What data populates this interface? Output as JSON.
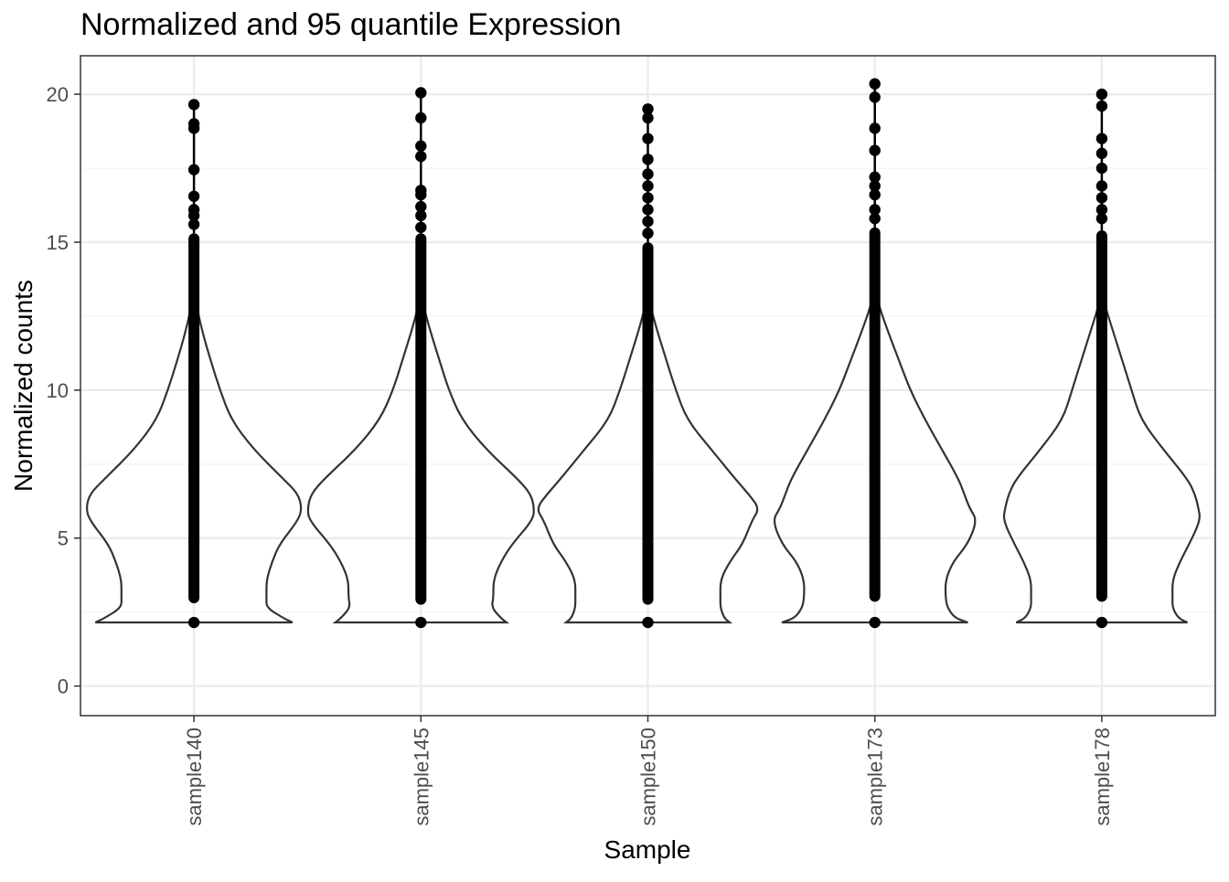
{
  "chart_data": {
    "type": "violin",
    "title": "Normalized and 95 quantile Expression",
    "xlabel": "Sample",
    "ylabel": "Normalized counts",
    "ylim": [
      -1.0,
      21.3
    ],
    "yticks": [
      0,
      5,
      10,
      15,
      20
    ],
    "yticklabels": [
      "0",
      "5",
      "10",
      "15",
      "20"
    ],
    "grid": true,
    "legend": "none",
    "categories": [
      "sample140",
      "sample145",
      "sample150",
      "sample173",
      "sample178"
    ],
    "series": [
      {
        "category": "sample140",
        "min": 2.15,
        "max": 19.65,
        "points_top": [
          19.65,
          19.0,
          18.85,
          17.45,
          16.55,
          16.1,
          15.9,
          15.6
        ],
        "points_dense_range": [
          2.8,
          15.3
        ],
        "violin_halfwidth_by_y": [
          [
            2.15,
            2.65
          ],
          [
            2.3,
            2.4
          ],
          [
            2.65,
            1.95
          ],
          [
            3.0,
            1.95
          ],
          [
            3.6,
            1.95
          ],
          [
            4.2,
            2.1
          ],
          [
            4.8,
            2.3
          ],
          [
            5.6,
            2.8
          ],
          [
            6.0,
            2.9
          ],
          [
            6.5,
            2.8
          ],
          [
            7.0,
            2.4
          ],
          [
            8.0,
            1.6
          ],
          [
            9.0,
            1.0
          ],
          [
            10.0,
            0.7
          ],
          [
            11.0,
            0.45
          ],
          [
            12.0,
            0.22
          ],
          [
            12.8,
            0.08
          ],
          [
            13.3,
            0.0
          ]
        ]
      },
      {
        "category": "sample145",
        "min": 2.15,
        "max": 20.05,
        "points_top": [
          20.05,
          19.2,
          18.25,
          17.9,
          16.75,
          16.6,
          16.2,
          15.9,
          15.5
        ],
        "points_dense_range": [
          2.75,
          15.3
        ],
        "violin_halfwidth_by_y": [
          [
            2.15,
            2.3
          ],
          [
            2.3,
            2.15
          ],
          [
            2.65,
            1.9
          ],
          [
            3.0,
            1.95
          ],
          [
            3.6,
            1.95
          ],
          [
            4.2,
            2.15
          ],
          [
            4.8,
            2.45
          ],
          [
            5.6,
            3.0
          ],
          [
            6.0,
            3.05
          ],
          [
            6.5,
            2.95
          ],
          [
            7.0,
            2.6
          ],
          [
            8.0,
            1.75
          ],
          [
            9.0,
            1.1
          ],
          [
            10.0,
            0.75
          ],
          [
            11.0,
            0.5
          ],
          [
            12.0,
            0.25
          ],
          [
            12.8,
            0.08
          ],
          [
            13.3,
            0.0
          ]
        ]
      },
      {
        "category": "sample150",
        "min": 2.15,
        "max": 19.5,
        "points_top": [
          19.5,
          19.2,
          18.5,
          17.8,
          17.3,
          16.9,
          16.5,
          16.1,
          15.7,
          15.3
        ],
        "points_dense_range": [
          2.75,
          15.0
        ],
        "violin_halfwidth_by_y": [
          [
            2.15,
            2.2
          ],
          [
            2.3,
            2.05
          ],
          [
            2.65,
            1.95
          ],
          [
            3.0,
            1.95
          ],
          [
            3.6,
            1.95
          ],
          [
            4.2,
            2.2
          ],
          [
            4.8,
            2.55
          ],
          [
            5.6,
            2.8
          ],
          [
            6.0,
            3.0
          ],
          [
            6.5,
            2.7
          ],
          [
            7.0,
            2.35
          ],
          [
            8.0,
            1.7
          ],
          [
            9.0,
            1.05
          ],
          [
            10.0,
            0.75
          ],
          [
            11.0,
            0.5
          ],
          [
            12.0,
            0.25
          ],
          [
            12.8,
            0.08
          ],
          [
            13.3,
            0.0
          ]
        ]
      },
      {
        "category": "sample173",
        "min": 2.15,
        "max": 20.35,
        "points_top": [
          20.35,
          19.9,
          18.85,
          18.1,
          17.2,
          16.9,
          16.6,
          16.1,
          15.8
        ],
        "points_dense_range": [
          2.85,
          15.5
        ],
        "violin_halfwidth_by_y": [
          [
            2.15,
            2.5
          ],
          [
            2.3,
            2.15
          ],
          [
            2.65,
            1.95
          ],
          [
            3.0,
            1.9
          ],
          [
            3.6,
            1.9
          ],
          [
            4.2,
            2.1
          ],
          [
            4.8,
            2.5
          ],
          [
            5.6,
            2.75
          ],
          [
            6.0,
            2.55
          ],
          [
            6.5,
            2.4
          ],
          [
            7.0,
            2.25
          ],
          [
            8.0,
            1.8
          ],
          [
            9.0,
            1.35
          ],
          [
            10.0,
            0.95
          ],
          [
            11.0,
            0.65
          ],
          [
            12.0,
            0.35
          ],
          [
            12.8,
            0.12
          ],
          [
            13.5,
            0.0
          ]
        ]
      },
      {
        "category": "sample178",
        "min": 2.15,
        "max": 20.0,
        "points_top": [
          20.0,
          19.6,
          18.5,
          18.0,
          17.5,
          16.9,
          16.5,
          16.1,
          15.8
        ],
        "points_dense_range": [
          2.85,
          15.4
        ],
        "violin_halfwidth_by_y": [
          [
            2.15,
            2.3
          ],
          [
            2.3,
            2.05
          ],
          [
            2.65,
            1.9
          ],
          [
            3.0,
            1.9
          ],
          [
            3.6,
            1.9
          ],
          [
            4.2,
            2.1
          ],
          [
            4.8,
            2.35
          ],
          [
            5.6,
            2.65
          ],
          [
            6.0,
            2.6
          ],
          [
            6.5,
            2.5
          ],
          [
            7.0,
            2.3
          ],
          [
            8.0,
            1.65
          ],
          [
            9.0,
            1.05
          ],
          [
            10.0,
            0.8
          ],
          [
            11.0,
            0.55
          ],
          [
            12.0,
            0.3
          ],
          [
            12.8,
            0.1
          ],
          [
            13.3,
            0.0
          ]
        ]
      }
    ],
    "colors": {
      "panel_border": "#333333",
      "grid_major": "#ebebeb",
      "grid_minor": "#f3f3f3",
      "violin_line": "#333333",
      "points": "#000000",
      "tick_text": "#4d4d4d",
      "label_text": "#000000"
    }
  }
}
